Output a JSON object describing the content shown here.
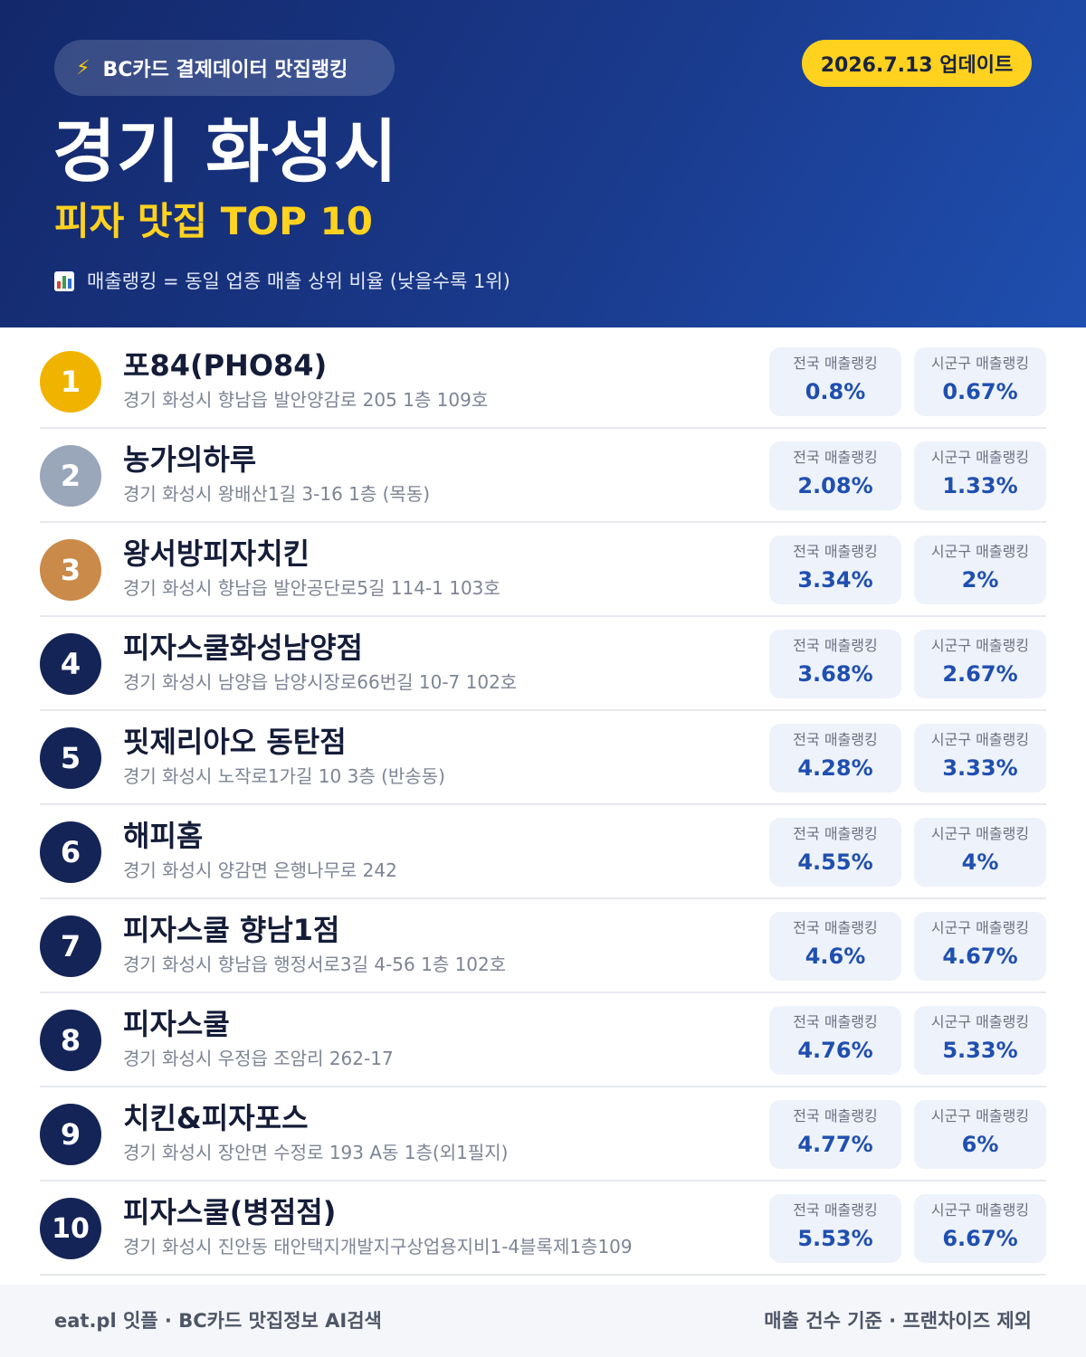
{
  "header": {
    "source_badge": "BC카드 결제데이터 맛집랭킹",
    "bolt_icon": "lightning-bolt-icon",
    "update_badge": "2026.7.13 업데이트",
    "title": "경기 화성시",
    "subtitle": "피자 맛집 TOP 10",
    "note": "매출랭킹 = 동일 업종 매출 상위 비율 (낮을수록 1위)",
    "note_icon": "bar-chart-icon"
  },
  "colors": {
    "header_dark": "#13286a",
    "header_light": "#1f4fb0",
    "accent_yellow": "#ffd21f",
    "gold": "#f0b400",
    "silver": "#9aa6ba",
    "bronze": "#c98a4a",
    "navy": "#142457",
    "value_blue": "#1f4fb0"
  },
  "labels": {
    "national": "전국 매출랭킹",
    "local": "시군구 매출랭킹"
  },
  "items": [
    {
      "rank": "1",
      "name": "포84(PHO84)",
      "address": "경기 화성시 향남읍 발안양감로 205 1층 109호",
      "national": "0.8%",
      "local": "0.67%",
      "medal": "gold"
    },
    {
      "rank": "2",
      "name": "농가의하루",
      "address": "경기 화성시 왕배산1길 3-16 1층 (목동)",
      "national": "2.08%",
      "local": "1.33%",
      "medal": "silver"
    },
    {
      "rank": "3",
      "name": "왕서방피자치킨",
      "address": "경기 화성시 향남읍 발안공단로5길 114-1 103호",
      "national": "3.34%",
      "local": "2%",
      "medal": "bronze"
    },
    {
      "rank": "4",
      "name": "피자스쿨화성남양점",
      "address": "경기 화성시 남양읍 남양시장로66번길 10-7 102호",
      "national": "3.68%",
      "local": "2.67%",
      "medal": "navy"
    },
    {
      "rank": "5",
      "name": "핏제리아오 동탄점",
      "address": "경기 화성시 노작로1가길 10 3층 (반송동)",
      "national": "4.28%",
      "local": "3.33%",
      "medal": "navy"
    },
    {
      "rank": "6",
      "name": "해피홈",
      "address": "경기 화성시 양감면 은행나무로 242",
      "national": "4.55%",
      "local": "4%",
      "medal": "navy"
    },
    {
      "rank": "7",
      "name": "피자스쿨 향남1점",
      "address": "경기 화성시 향남읍 행정서로3길 4-56 1층 102호",
      "national": "4.6%",
      "local": "4.67%",
      "medal": "navy"
    },
    {
      "rank": "8",
      "name": "피자스쿨",
      "address": "경기 화성시 우정읍 조암리 262-17",
      "national": "4.76%",
      "local": "5.33%",
      "medal": "navy"
    },
    {
      "rank": "9",
      "name": "치킨&피자포스",
      "address": "경기 화성시 장안면 수정로 193 A동 1층(외1필지)",
      "national": "4.77%",
      "local": "6%",
      "medal": "navy"
    },
    {
      "rank": "10",
      "name": "피자스쿨(병점점)",
      "address": "경기 화성시 진안동 태안택지개발지구상업용지비1-4블록제1층109",
      "national": "5.53%",
      "local": "6.67%",
      "medal": "navy"
    }
  ],
  "footer": {
    "left": "eat.pl 잇플 · BC카드 맛집정보 AI검색",
    "right": "매출 건수 기준 · 프랜차이즈 제외"
  }
}
